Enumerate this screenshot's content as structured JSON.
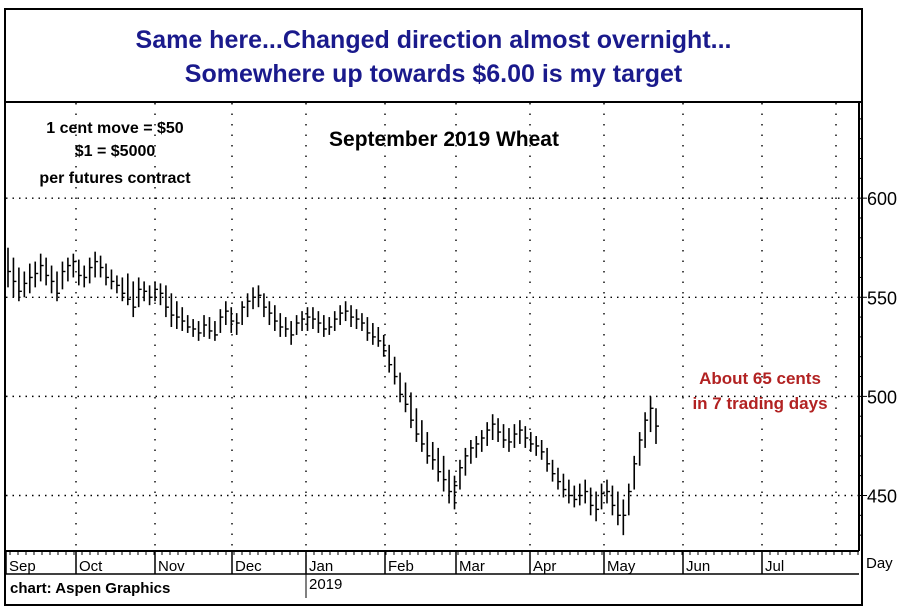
{
  "headline": {
    "line1": "Same here...Changed direction almost overnight...",
    "line2": "Somewhere up towards $6.00 is my target"
  },
  "notes": {
    "line1": "1 cent move = $50",
    "line2": "$1 = $5000",
    "line3": "per futures contract"
  },
  "annotation": {
    "line1": "About 65 cents",
    "line2": "in 7 trading days",
    "color": "#b22222"
  },
  "credit": "chart: Aspen Graphics",
  "year_label": "2019",
  "day_label": "Day",
  "chart_data": {
    "type": "ohlc",
    "title": "September 2019 Wheat",
    "xlabel": "",
    "ylabel": "",
    "ylim": [
      422,
      648
    ],
    "yticks": [
      450,
      500,
      550,
      600
    ],
    "x_tick_labels": [
      "Sep",
      "Oct",
      "Nov",
      "Dec",
      "Jan",
      "Feb",
      "Mar",
      "Apr",
      "May",
      "Jun",
      "Jul"
    ],
    "grid": true,
    "bar_color": "#000000",
    "series": [
      {
        "values": [
          {
            "h": 575,
            "l": 555,
            "c": 563
          },
          {
            "h": 570,
            "l": 550,
            "c": 558
          },
          {
            "h": 565,
            "l": 548,
            "c": 553
          },
          {
            "h": 563,
            "l": 550,
            "c": 557
          },
          {
            "h": 567,
            "l": 552,
            "c": 560
          },
          {
            "h": 568,
            "l": 555,
            "c": 562
          },
          {
            "h": 572,
            "l": 558,
            "c": 566
          },
          {
            "h": 570,
            "l": 556,
            "c": 561
          },
          {
            "h": 566,
            "l": 552,
            "c": 558
          },
          {
            "h": 563,
            "l": 548,
            "c": 552
          },
          {
            "h": 568,
            "l": 554,
            "c": 563
          },
          {
            "h": 570,
            "l": 558,
            "c": 566
          },
          {
            "h": 572,
            "l": 560,
            "c": 568
          },
          {
            "h": 569,
            "l": 556,
            "c": 561
          },
          {
            "h": 566,
            "l": 555,
            "c": 560
          },
          {
            "h": 570,
            "l": 557,
            "c": 565
          },
          {
            "h": 573,
            "l": 560,
            "c": 568
          },
          {
            "h": 571,
            "l": 560,
            "c": 565
          },
          {
            "h": 567,
            "l": 556,
            "c": 560
          },
          {
            "h": 564,
            "l": 554,
            "c": 558
          },
          {
            "h": 561,
            "l": 552,
            "c": 556
          },
          {
            "h": 560,
            "l": 548,
            "c": 552
          },
          {
            "h": 562,
            "l": 546,
            "c": 549
          },
          {
            "h": 558,
            "l": 540,
            "c": 545
          },
          {
            "h": 560,
            "l": 545,
            "c": 554
          },
          {
            "h": 558,
            "l": 548,
            "c": 553
          },
          {
            "h": 556,
            "l": 546,
            "c": 550
          },
          {
            "h": 558,
            "l": 548,
            "c": 554
          },
          {
            "h": 557,
            "l": 546,
            "c": 552
          },
          {
            "h": 556,
            "l": 540,
            "c": 545
          },
          {
            "h": 552,
            "l": 535,
            "c": 541
          },
          {
            "h": 548,
            "l": 534,
            "c": 540
          },
          {
            "h": 545,
            "l": 533,
            "c": 538
          },
          {
            "h": 541,
            "l": 532,
            "c": 535
          },
          {
            "h": 539,
            "l": 530,
            "c": 534
          },
          {
            "h": 538,
            "l": 528,
            "c": 532
          },
          {
            "h": 541,
            "l": 530,
            "c": 536
          },
          {
            "h": 540,
            "l": 529,
            "c": 533
          },
          {
            "h": 538,
            "l": 528,
            "c": 531
          },
          {
            "h": 544,
            "l": 532,
            "c": 540
          },
          {
            "h": 548,
            "l": 536,
            "c": 543
          },
          {
            "h": 545,
            "l": 532,
            "c": 538
          },
          {
            "h": 542,
            "l": 531,
            "c": 537
          },
          {
            "h": 548,
            "l": 536,
            "c": 545
          },
          {
            "h": 552,
            "l": 540,
            "c": 548
          },
          {
            "h": 555,
            "l": 544,
            "c": 550
          },
          {
            "h": 556,
            "l": 545,
            "c": 551
          },
          {
            "h": 552,
            "l": 540,
            "c": 545
          },
          {
            "h": 548,
            "l": 536,
            "c": 542
          },
          {
            "h": 546,
            "l": 533,
            "c": 538
          },
          {
            "h": 542,
            "l": 530,
            "c": 535
          },
          {
            "h": 540,
            "l": 530,
            "c": 534
          },
          {
            "h": 538,
            "l": 526,
            "c": 531
          },
          {
            "h": 541,
            "l": 531,
            "c": 537
          },
          {
            "h": 543,
            "l": 533,
            "c": 539
          },
          {
            "h": 545,
            "l": 533,
            "c": 540
          },
          {
            "h": 545,
            "l": 534,
            "c": 539
          },
          {
            "h": 543,
            "l": 532,
            "c": 537
          },
          {
            "h": 541,
            "l": 530,
            "c": 534
          },
          {
            "h": 540,
            "l": 531,
            "c": 535
          },
          {
            "h": 543,
            "l": 533,
            "c": 539
          },
          {
            "h": 546,
            "l": 536,
            "c": 542
          },
          {
            "h": 548,
            "l": 538,
            "c": 543
          },
          {
            "h": 546,
            "l": 535,
            "c": 540
          },
          {
            "h": 544,
            "l": 534,
            "c": 539
          },
          {
            "h": 542,
            "l": 533,
            "c": 537
          },
          {
            "h": 540,
            "l": 528,
            "c": 532
          },
          {
            "h": 537,
            "l": 526,
            "c": 530
          },
          {
            "h": 535,
            "l": 525,
            "c": 528
          },
          {
            "h": 531,
            "l": 520,
            "c": 523
          },
          {
            "h": 526,
            "l": 512,
            "c": 516
          },
          {
            "h": 520,
            "l": 506,
            "c": 510
          },
          {
            "h": 512,
            "l": 497,
            "c": 501
          },
          {
            "h": 507,
            "l": 492,
            "c": 496
          },
          {
            "h": 502,
            "l": 484,
            "c": 488
          },
          {
            "h": 494,
            "l": 477,
            "c": 481
          },
          {
            "h": 488,
            "l": 472,
            "c": 476
          },
          {
            "h": 482,
            "l": 466,
            "c": 470
          },
          {
            "h": 477,
            "l": 463,
            "c": 468
          },
          {
            "h": 474,
            "l": 457,
            "c": 462
          },
          {
            "h": 470,
            "l": 452,
            "c": 458
          },
          {
            "h": 463,
            "l": 446,
            "c": 452
          },
          {
            "h": 460,
            "l": 443,
            "c": 455
          },
          {
            "h": 468,
            "l": 453,
            "c": 464
          },
          {
            "h": 474,
            "l": 460,
            "c": 470
          },
          {
            "h": 478,
            "l": 466,
            "c": 474
          },
          {
            "h": 480,
            "l": 469,
            "c": 476
          },
          {
            "h": 483,
            "l": 472,
            "c": 479
          },
          {
            "h": 487,
            "l": 475,
            "c": 483
          },
          {
            "h": 491,
            "l": 478,
            "c": 486
          },
          {
            "h": 489,
            "l": 477,
            "c": 482
          },
          {
            "h": 486,
            "l": 474,
            "c": 478
          },
          {
            "h": 484,
            "l": 472,
            "c": 477
          },
          {
            "h": 486,
            "l": 474,
            "c": 481
          },
          {
            "h": 488,
            "l": 476,
            "c": 483
          },
          {
            "h": 485,
            "l": 474,
            "c": 479
          },
          {
            "h": 482,
            "l": 472,
            "c": 476
          },
          {
            "h": 480,
            "l": 470,
            "c": 475
          },
          {
            "h": 478,
            "l": 468,
            "c": 472
          },
          {
            "h": 474,
            "l": 462,
            "c": 466
          },
          {
            "h": 468,
            "l": 457,
            "c": 461
          },
          {
            "h": 464,
            "l": 453,
            "c": 457
          },
          {
            "h": 461,
            "l": 449,
            "c": 453
          },
          {
            "h": 458,
            "l": 446,
            "c": 450
          },
          {
            "h": 455,
            "l": 444,
            "c": 448
          },
          {
            "h": 456,
            "l": 445,
            "c": 450
          },
          {
            "h": 458,
            "l": 446,
            "c": 452
          },
          {
            "h": 454,
            "l": 440,
            "c": 445
          },
          {
            "h": 452,
            "l": 437,
            "c": 443
          },
          {
            "h": 456,
            "l": 443,
            "c": 451
          },
          {
            "h": 458,
            "l": 446,
            "c": 452
          },
          {
            "h": 455,
            "l": 440,
            "c": 445
          },
          {
            "h": 452,
            "l": 435,
            "c": 440
          },
          {
            "h": 448,
            "l": 430,
            "c": 440
          },
          {
            "h": 456,
            "l": 440,
            "c": 452
          },
          {
            "h": 470,
            "l": 453,
            "c": 466
          },
          {
            "h": 482,
            "l": 465,
            "c": 478
          },
          {
            "h": 492,
            "l": 474,
            "c": 488
          },
          {
            "h": 500,
            "l": 482,
            "c": 494
          },
          {
            "h": 494,
            "l": 476,
            "c": 485
          }
        ]
      }
    ]
  }
}
